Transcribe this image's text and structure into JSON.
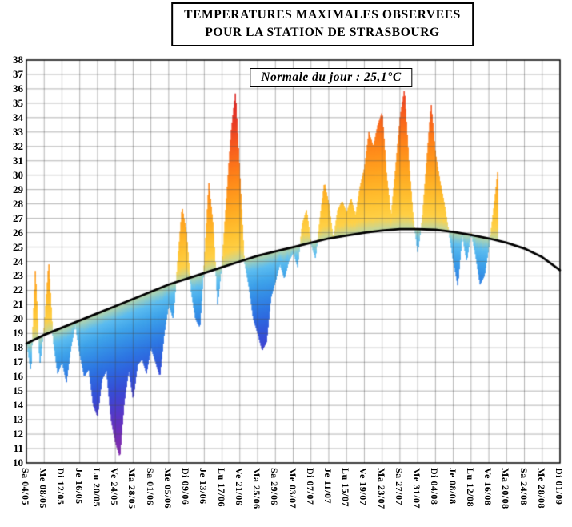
{
  "title": {
    "line1": "TEMPERATURES MAXIMALES OBSERVEES",
    "line2": "POUR LA STATION DE STRASBOURG"
  },
  "annotation": {
    "normale_label": "Normale du jour : 25,1°C"
  },
  "chart_data": {
    "type": "area",
    "title": "TEMPERATURES MAXIMALES OBSERVEES POUR LA STATION DE STRASBOURG",
    "annotation": "Normale du jour : 25,1°C",
    "normale_du_jour": 25.1,
    "xlabel": "",
    "ylabel": "°C",
    "ylim": [
      10,
      38
    ],
    "grid": true,
    "y_ticks": [
      38,
      37,
      36,
      35,
      34,
      33,
      32,
      31,
      30,
      29,
      28,
      27,
      26,
      25,
      24,
      23,
      22,
      21,
      20,
      19,
      18,
      17,
      16,
      15,
      14,
      13,
      12,
      11,
      10
    ],
    "days_per_tick": 4,
    "x_tick_labels": [
      "Sa 04/05",
      "Me 08/05",
      "Di 12/05",
      "Je 16/05",
      "Lu 20/05",
      "Ve 24/05",
      "Ma 28/05",
      "Sa 01/06",
      "Me 05/06",
      "Di 09/06",
      "Je 13/06",
      "Lu 17/06",
      "Ve 21/06",
      "Ma 25/06",
      "Sa 29/06",
      "Me 03/07",
      "Di 07/07",
      "Je 11/07",
      "Lu 15/07",
      "Ve 19/07",
      "Ma 23/07",
      "Sa 27/07",
      "Me 31/07",
      "Di 04/08",
      "Je 08/08",
      "Lu 12/08",
      "Ve 16/08",
      "Ma 20/08",
      "Sa 24/08",
      "Me 28/08",
      "Di 01/09"
    ],
    "series": [
      {
        "name": "observed_daily_max",
        "values": [
          18.5,
          16.3,
          23.5,
          16.8,
          19.5,
          24.0,
          18.5,
          16.2,
          17.0,
          15.6,
          18.0,
          19.6,
          17.5,
          16.0,
          16.5,
          14.0,
          13.2,
          15.8,
          16.4,
          13.0,
          11.4,
          10.4,
          14.2,
          16.4,
          14.4,
          16.8,
          17.2,
          16.2,
          18.0,
          17.0,
          16.0,
          19.0,
          21.0,
          20.0,
          24.0,
          27.8,
          26.0,
          22.0,
          20.0,
          19.4,
          24.0,
          29.5,
          26.5,
          21.0,
          24.0,
          28.5,
          33.0,
          35.8,
          30.0,
          24.0,
          22.3,
          20.0,
          19.0,
          17.8,
          18.4,
          21.5,
          22.6,
          23.8,
          22.8,
          24.0,
          24.6,
          23.6,
          26.6,
          27.6,
          25.2,
          24.2,
          27.0,
          29.5,
          28.0,
          25.6,
          27.6,
          28.2,
          27.4,
          28.4,
          27.2,
          29.2,
          30.5,
          33.0,
          32.0,
          33.5,
          34.4,
          30.0,
          27.2,
          30.5,
          34.0,
          36.0,
          31.0,
          27.0,
          24.6,
          27.0,
          31.0,
          35.0,
          31.5,
          29.6,
          28.0,
          26.0,
          24.0,
          22.3,
          25.8,
          24.0,
          26.0,
          24.4,
          22.4,
          23.0,
          25.0,
          27.5,
          30.3
        ]
      },
      {
        "name": "normale_curve",
        "values_at_ticks": [
          18.3,
          18.9,
          19.4,
          19.9,
          20.4,
          20.9,
          21.4,
          21.9,
          22.4,
          22.8,
          23.2,
          23.6,
          24.0,
          24.4,
          24.7,
          25.0,
          25.3,
          25.6,
          25.8,
          26.0,
          26.15,
          26.25,
          26.25,
          26.2,
          26.05,
          25.85,
          25.6,
          25.3,
          24.9,
          24.3,
          23.4
        ]
      }
    ],
    "colors": {
      "normal_curve": "#000000",
      "grid": "#444444",
      "frame": "#000000",
      "deviation_color_stops": [
        {
          "dev": -10,
          "color": "#7a1fa8"
        },
        {
          "dev": -8,
          "color": "#5527c0"
        },
        {
          "dev": -6,
          "color": "#2a3fd4"
        },
        {
          "dev": -4,
          "color": "#1e68e0"
        },
        {
          "dev": -2,
          "color": "#2e9ae8"
        },
        {
          "dev": -0.01,
          "color": "#6fd1f5"
        },
        {
          "dev": 0.01,
          "color": "#ffd84d"
        },
        {
          "dev": 2,
          "color": "#ffc025"
        },
        {
          "dev": 4,
          "color": "#ffa012"
        },
        {
          "dev": 6,
          "color": "#ff7d0a"
        },
        {
          "dev": 8,
          "color": "#f8540f"
        },
        {
          "dev": 10,
          "color": "#e62a18"
        },
        {
          "dev": 12,
          "color": "#d81616"
        }
      ]
    }
  }
}
